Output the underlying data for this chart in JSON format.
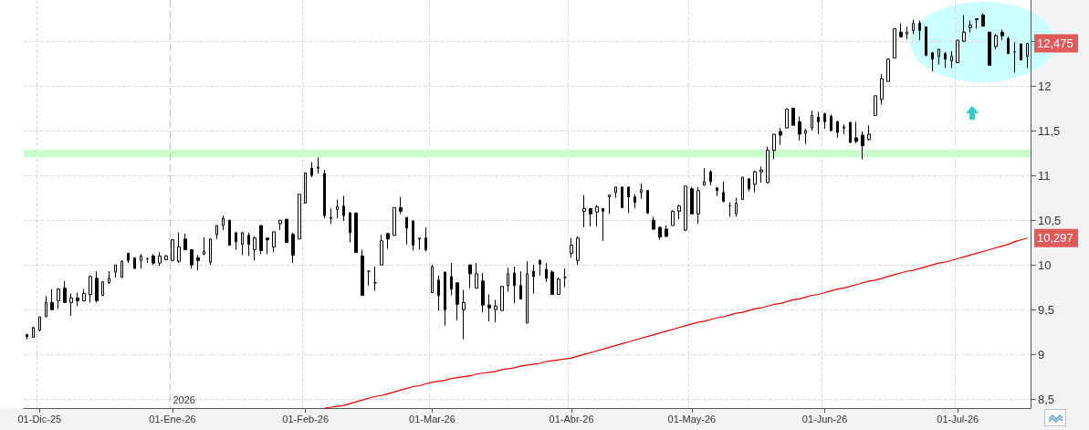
{
  "chart_data": {
    "type": "candlestick",
    "categories": [
      null,
      null,
      "01-Dic-25",
      null,
      null,
      null,
      null,
      null,
      null,
      null,
      null,
      null,
      null,
      null,
      null,
      null,
      null,
      null,
      null,
      null,
      null,
      null,
      null,
      "01-Ene-26",
      null,
      null,
      null,
      null,
      null,
      null,
      null,
      null,
      null,
      null,
      null,
      null,
      null,
      null,
      null,
      null,
      null,
      null,
      null,
      null,
      "01-Feb-26",
      null,
      null,
      null,
      null,
      null,
      null,
      null,
      null,
      null,
      null,
      null,
      null,
      null,
      null,
      null,
      null,
      null,
      null,
      null,
      "01-Mar-26",
      null,
      null,
      null,
      null,
      null,
      null,
      null,
      null,
      null,
      null,
      null,
      null,
      null,
      null,
      null,
      null,
      null,
      null,
      null,
      null,
      null,
      "01-Abr-26",
      null,
      null,
      null,
      null,
      null,
      null,
      null,
      null,
      null,
      null,
      null,
      null,
      null,
      null,
      null,
      null,
      null,
      null,
      "01-May-26",
      null,
      null,
      null,
      null,
      null,
      null,
      null,
      null,
      null,
      null,
      null,
      null,
      null,
      null,
      null,
      null,
      null,
      null,
      null,
      null,
      "01-Jun-26",
      null,
      null,
      null,
      null,
      null,
      null,
      null,
      null,
      null,
      null,
      null,
      null,
      null,
      null,
      null,
      null,
      null,
      null,
      null,
      null,
      "01-Jul-26",
      null,
      null,
      null,
      null,
      null,
      null,
      null,
      null,
      null,
      null,
      null
    ],
    "series": [
      {
        "color": "#000000",
        "ohlc": [
          [
            9.22,
            9.23,
            9.17,
            9.2
          ],
          [
            9.19,
            9.31,
            9.19,
            9.3
          ],
          [
            9.27,
            9.42,
            9.26,
            9.42
          ],
          [
            9.42,
            9.65,
            9.42,
            9.58
          ],
          [
            9.58,
            9.73,
            9.5,
            9.5
          ],
          [
            9.6,
            9.74,
            9.51,
            9.73
          ],
          [
            9.74,
            9.82,
            9.58,
            9.58
          ],
          [
            9.58,
            9.68,
            9.43,
            9.63
          ],
          [
            9.63,
            9.69,
            9.54,
            9.6
          ],
          [
            9.6,
            9.73,
            9.59,
            9.68
          ],
          [
            9.67,
            9.88,
            9.58,
            9.87
          ],
          [
            9.85,
            9.93,
            9.58,
            9.6
          ],
          [
            9.66,
            9.82,
            9.66,
            9.81
          ],
          [
            9.8,
            9.93,
            9.79,
            9.85
          ],
          [
            9.92,
            10.0,
            9.86,
            10.0
          ],
          [
            9.86,
            10.05,
            9.86,
            10.04
          ],
          [
            10.13,
            10.13,
            10.02,
            10.05
          ],
          [
            10.08,
            10.08,
            9.96,
            9.96
          ],
          [
            10.05,
            10.12,
            9.96,
            10.1
          ],
          [
            10.07,
            10.08,
            10.02,
            10.07
          ],
          [
            10.1,
            10.12,
            10.0,
            10.02
          ],
          [
            10.02,
            10.14,
            9.99,
            10.1
          ],
          [
            10.06,
            10.11,
            10.05,
            10.1
          ],
          [
            10.05,
            10.29,
            10.04,
            10.28
          ],
          [
            10.04,
            10.36,
            10.02,
            10.2
          ],
          [
            10.29,
            10.35,
            10.17,
            10.17
          ],
          [
            10.17,
            10.17,
            9.96,
            10.0
          ],
          [
            10.08,
            10.11,
            9.94,
            10.05
          ],
          [
            10.12,
            10.31,
            10.11,
            10.15
          ],
          [
            10.03,
            10.29,
            10.0,
            10.29
          ],
          [
            10.34,
            10.44,
            10.29,
            10.44
          ],
          [
            10.44,
            10.55,
            10.39,
            10.52
          ],
          [
            10.5,
            10.5,
            10.22,
            10.22
          ],
          [
            10.36,
            10.36,
            10.17,
            10.26
          ],
          [
            10.23,
            10.37,
            10.11,
            10.36
          ],
          [
            10.33,
            10.36,
            10.1,
            10.23
          ],
          [
            10.17,
            10.32,
            10.05,
            10.3
          ],
          [
            10.44,
            10.44,
            10.12,
            10.16
          ],
          [
            10.3,
            10.3,
            10.12,
            10.28
          ],
          [
            10.2,
            10.37,
            10.14,
            10.37
          ],
          [
            10.46,
            10.5,
            10.39,
            10.5
          ],
          [
            10.51,
            10.51,
            10.25,
            10.25
          ],
          [
            10.34,
            10.36,
            10.02,
            10.11
          ],
          [
            10.29,
            10.79,
            10.29,
            10.79
          ],
          [
            10.69,
            11.03,
            10.69,
            11.03
          ],
          [
            11.08,
            11.15,
            10.98,
            11.0
          ],
          [
            11.08,
            11.2,
            11.02,
            11.09
          ],
          [
            11.02,
            11.06,
            10.52,
            10.55
          ],
          [
            10.52,
            10.63,
            10.46,
            10.53
          ],
          [
            10.62,
            10.73,
            10.52,
            10.65
          ],
          [
            10.66,
            10.77,
            10.49,
            10.55
          ],
          [
            10.58,
            10.59,
            10.25,
            10.36
          ],
          [
            10.58,
            10.58,
            10.14,
            10.14
          ],
          [
            10.1,
            10.17,
            9.66,
            9.66
          ],
          [
            9.93,
            9.93,
            9.77,
            9.93
          ],
          [
            9.8,
            9.98,
            9.71,
            9.8
          ],
          [
            10.0,
            10.34,
            10.0,
            10.27
          ],
          [
            10.35,
            10.35,
            10.18,
            10.29
          ],
          [
            10.33,
            10.64,
            10.33,
            10.64
          ],
          [
            10.64,
            10.76,
            10.57,
            10.6
          ],
          [
            10.53,
            10.53,
            10.23,
            10.41
          ],
          [
            10.49,
            10.5,
            10.16,
            10.22
          ],
          [
            10.29,
            10.3,
            10.17,
            10.3
          ],
          [
            10.3,
            10.42,
            10.15,
            10.17
          ],
          [
            9.69,
            10.0,
            9.69,
            9.98
          ],
          [
            9.83,
            9.88,
            9.49,
            9.66
          ],
          [
            9.92,
            9.92,
            9.32,
            9.5
          ],
          [
            9.87,
            10.02,
            9.66,
            9.73
          ],
          [
            9.8,
            9.8,
            9.38,
            9.56
          ],
          [
            9.5,
            9.72,
            9.17,
            9.58
          ],
          [
            10.0,
            10.0,
            9.74,
            9.9
          ],
          [
            9.74,
            10.02,
            9.74,
            9.9
          ],
          [
            9.82,
            9.91,
            9.47,
            9.55
          ],
          [
            9.55,
            9.67,
            9.37,
            9.52
          ],
          [
            9.5,
            9.61,
            9.36,
            9.54
          ],
          [
            9.49,
            9.76,
            9.49,
            9.76
          ],
          [
            9.77,
            9.97,
            9.7,
            9.9
          ],
          [
            9.91,
            9.98,
            9.57,
            9.77
          ],
          [
            9.77,
            9.93,
            9.62,
            9.62
          ],
          [
            9.35,
            10.04,
            9.35,
            9.9
          ],
          [
            9.93,
            10.0,
            9.68,
            9.87
          ],
          [
            10.05,
            10.06,
            9.88,
            10.01
          ],
          [
            9.95,
            10.02,
            9.81,
            9.85
          ],
          [
            9.92,
            9.94,
            9.67,
            9.67
          ],
          [
            9.67,
            9.86,
            9.67,
            9.84
          ],
          [
            9.86,
            9.96,
            9.75,
            9.86
          ],
          [
            10.13,
            10.3,
            10.08,
            10.22
          ],
          [
            10.05,
            10.32,
            10.0,
            10.3
          ],
          [
            10.6,
            10.78,
            10.42,
            10.63
          ],
          [
            10.63,
            10.63,
            10.43,
            10.57
          ],
          [
            10.59,
            10.67,
            10.43,
            10.65
          ],
          [
            10.63,
            10.63,
            10.27,
            10.6
          ],
          [
            10.76,
            10.78,
            10.57,
            10.78
          ],
          [
            10.81,
            10.87,
            10.75,
            10.87
          ],
          [
            10.87,
            10.87,
            10.64,
            10.64
          ],
          [
            10.87,
            10.87,
            10.58,
            10.76
          ],
          [
            10.76,
            10.79,
            10.63,
            10.7
          ],
          [
            10.81,
            10.91,
            10.74,
            10.84
          ],
          [
            10.83,
            10.84,
            10.57,
            10.58
          ],
          [
            10.5,
            10.54,
            10.39,
            10.4
          ],
          [
            10.42,
            10.43,
            10.28,
            10.31
          ],
          [
            10.4,
            10.44,
            10.31,
            10.32
          ],
          [
            10.44,
            10.61,
            10.44,
            10.6
          ],
          [
            10.6,
            10.67,
            10.51,
            10.66
          ],
          [
            10.39,
            10.88,
            10.38,
            10.88
          ],
          [
            10.85,
            10.87,
            10.57,
            10.57
          ],
          [
            10.57,
            10.87,
            10.46,
            10.83
          ],
          [
            10.89,
            11.08,
            10.89,
            10.93
          ],
          [
            11.04,
            11.06,
            10.89,
            10.93
          ],
          [
            10.86,
            10.87,
            10.77,
            10.83
          ],
          [
            10.81,
            10.93,
            10.7,
            10.71
          ],
          [
            10.66,
            10.7,
            10.54,
            10.66
          ],
          [
            10.57,
            10.75,
            10.54,
            10.69
          ],
          [
            10.73,
            10.98,
            10.73,
            10.98
          ],
          [
            10.96,
            10.97,
            10.82,
            10.85
          ],
          [
            10.9,
            11.05,
            10.81,
            11.04
          ],
          [
            11.04,
            11.1,
            10.92,
            11.06
          ],
          [
            10.92,
            11.32,
            10.91,
            11.28
          ],
          [
            11.28,
            11.46,
            11.18,
            11.46
          ],
          [
            11.49,
            11.53,
            11.34,
            11.45
          ],
          [
            11.53,
            11.75,
            11.53,
            11.74
          ],
          [
            11.75,
            11.75,
            11.56,
            11.56
          ],
          [
            11.6,
            11.66,
            11.39,
            11.46
          ],
          [
            11.47,
            11.52,
            11.35,
            11.5
          ],
          [
            11.53,
            11.72,
            11.5,
            11.67
          ],
          [
            11.65,
            11.71,
            11.46,
            11.6
          ],
          [
            11.69,
            11.7,
            11.52,
            11.6
          ],
          [
            11.66,
            11.68,
            11.5,
            11.5
          ],
          [
            11.6,
            11.61,
            11.42,
            11.48
          ],
          [
            11.54,
            11.57,
            11.46,
            11.53
          ],
          [
            11.59,
            11.6,
            11.36,
            11.37
          ],
          [
            11.42,
            11.6,
            11.36,
            11.38
          ],
          [
            11.45,
            11.49,
            11.18,
            11.33
          ],
          [
            11.4,
            11.56,
            11.39,
            11.46
          ],
          [
            11.67,
            11.89,
            11.67,
            11.89
          ],
          [
            11.85,
            12.13,
            11.79,
            12.08
          ],
          [
            12.05,
            12.31,
            12.05,
            12.3
          ],
          [
            12.31,
            12.64,
            12.31,
            12.64
          ],
          [
            12.6,
            12.7,
            12.54,
            12.55
          ],
          [
            12.58,
            12.66,
            12.52,
            12.6
          ],
          [
            12.62,
            12.74,
            12.58,
            12.7
          ],
          [
            12.7,
            12.73,
            12.51,
            12.62
          ],
          [
            12.66,
            12.66,
            12.34,
            12.34
          ],
          [
            12.37,
            12.38,
            12.16,
            12.3
          ],
          [
            12.33,
            12.41,
            12.24,
            12.41
          ],
          [
            12.36,
            12.38,
            12.2,
            12.3
          ],
          [
            12.28,
            12.39,
            12.2,
            12.33
          ],
          [
            12.26,
            12.51,
            12.26,
            12.51
          ],
          [
            12.5,
            12.79,
            12.49,
            12.6
          ],
          [
            12.65,
            12.73,
            12.6,
            12.68
          ],
          [
            12.75,
            12.75,
            12.64,
            12.74
          ],
          [
            12.79,
            12.81,
            12.66,
            12.67
          ],
          [
            12.6,
            12.6,
            12.23,
            12.23
          ],
          [
            12.44,
            12.58,
            12.41,
            12.56
          ],
          [
            12.6,
            12.63,
            12.51,
            12.56
          ],
          [
            12.53,
            12.55,
            12.36,
            12.36
          ],
          [
            12.38,
            12.49,
            12.15,
            12.38
          ],
          [
            12.47,
            12.47,
            12.29,
            12.29
          ],
          [
            12.33,
            12.475,
            12.2,
            12.475
          ]
        ]
      },
      {
        "type": "line",
        "color": "#e00000",
        "values": [
          null,
          null,
          null,
          null,
          null,
          null,
          null,
          null,
          null,
          null,
          null,
          null,
          null,
          null,
          null,
          null,
          null,
          null,
          null,
          null,
          null,
          null,
          null,
          null,
          null,
          null,
          null,
          null,
          null,
          null,
          null,
          null,
          null,
          null,
          null,
          null,
          null,
          null,
          null,
          null,
          null,
          null,
          null,
          null,
          null,
          null,
          null,
          8.4,
          8.41,
          8.42,
          8.43,
          8.45,
          8.47,
          8.49,
          8.51,
          8.53,
          8.54,
          8.56,
          8.58,
          8.6,
          8.62,
          8.64,
          8.65,
          8.67,
          8.69,
          8.7,
          8.71,
          8.73,
          8.74,
          8.75,
          8.76,
          8.78,
          8.79,
          8.8,
          8.81,
          8.83,
          8.84,
          8.85,
          8.87,
          8.88,
          8.89,
          8.9,
          8.92,
          8.93,
          8.94,
          8.95,
          8.96,
          8.98,
          9.0,
          9.02,
          9.04,
          9.06,
          9.08,
          9.1,
          9.12,
          9.14,
          9.16,
          9.18,
          9.2,
          9.22,
          9.24,
          9.26,
          9.28,
          9.3,
          9.32,
          9.34,
          9.36,
          9.37,
          9.39,
          9.41,
          9.42,
          9.44,
          9.46,
          9.47,
          9.49,
          9.51,
          9.52,
          9.54,
          9.56,
          9.57,
          9.59,
          9.61,
          9.62,
          9.64,
          9.66,
          9.67,
          9.69,
          9.71,
          9.73,
          9.74,
          9.76,
          9.78,
          9.8,
          9.82,
          9.83,
          9.85,
          9.87,
          9.89,
          9.91,
          9.93,
          9.94,
          9.96,
          9.98,
          10.0,
          10.02,
          10.03,
          10.05,
          10.07,
          10.09,
          10.11,
          10.13,
          10.15,
          10.17,
          10.19,
          10.21,
          10.23,
          10.26,
          10.28,
          10.3
        ]
      }
    ],
    "ylim": [
      8.4,
      12.96
    ],
    "yticks": [
      {
        "value": 8.5,
        "label": "8,5"
      },
      9,
      {
        "value": 9.5,
        "label": "9,5"
      },
      10,
      {
        "value": 10.5,
        "label": "10,5"
      },
      11,
      {
        "value": 11.5,
        "label": "11,5"
      },
      12,
      {
        "value": 12.5,
        "label": null
      }
    ],
    "grid": true,
    "bands": [
      {
        "axis": "y",
        "from": 11.2,
        "to": 11.29,
        "color": "#ccffcc"
      }
    ],
    "ref_lines": [
      {
        "axis": "x",
        "value": "01-Ene-26",
        "label": "2026",
        "color": "#c8c8c8",
        "line_style": "dashed"
      }
    ],
    "annotations": [
      "12,475",
      "10,297"
    ]
  }
}
